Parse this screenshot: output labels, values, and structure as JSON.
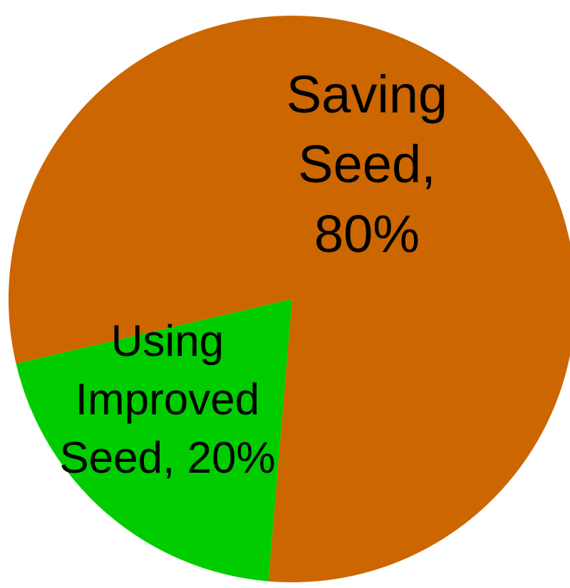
{
  "chart_data": {
    "type": "pie",
    "values": [
      80,
      20
    ],
    "value_labels": [
      "Saving Seed, 80%",
      "Using Improved Seed, 20%"
    ],
    "colors": [
      "#cc6600",
      "#00cc00"
    ]
  }
}
